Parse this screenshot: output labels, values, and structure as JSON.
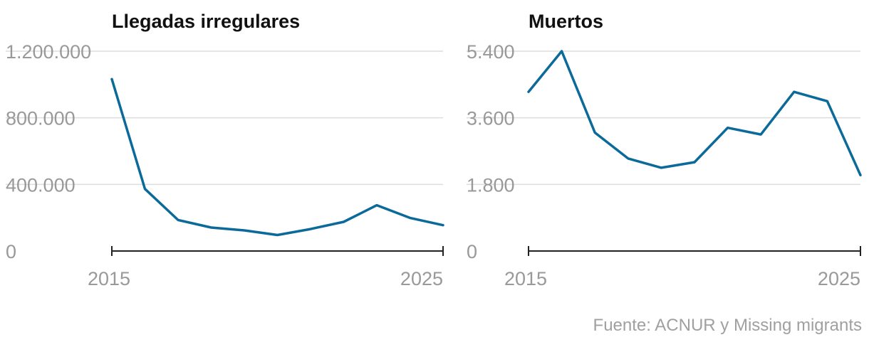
{
  "colors": {
    "line": "#0b6a99",
    "grid": "#dddddd",
    "axis": "#222222",
    "tick_text": "#999999",
    "title": "#111111"
  },
  "chart_data": [
    {
      "type": "line",
      "title": "Llegadas irregulares",
      "x": [
        2015,
        2016,
        2017,
        2018,
        2019,
        2020,
        2021,
        2022,
        2023,
        2024,
        2025
      ],
      "x_tick_labels": [
        "2015",
        "2025"
      ],
      "y_tick_values": [
        0,
        400000,
        800000,
        1200000
      ],
      "y_tick_labels": [
        "0",
        "400.000",
        "800.000",
        "1.200.000"
      ],
      "ylim": [
        0,
        1200000
      ],
      "grid": true,
      "series": [
        {
          "values": [
            1032000,
            373000,
            186000,
            141000,
            124000,
            96000,
            132000,
            175000,
            275000,
            199000,
            155000
          ]
        }
      ]
    },
    {
      "type": "line",
      "title": "Muertos",
      "x": [
        2015,
        2016,
        2017,
        2018,
        2019,
        2020,
        2021,
        2022,
        2023,
        2024,
        2025
      ],
      "x_tick_labels": [
        "2015",
        "2025"
      ],
      "y_tick_values": [
        0,
        1800,
        3600,
        5400
      ],
      "y_tick_labels": [
        "0",
        "1.800",
        "3.600",
        "5.400"
      ],
      "ylim": [
        0,
        5400
      ],
      "grid": true,
      "series": [
        {
          "values": [
            4300,
            5400,
            3200,
            2500,
            2250,
            2400,
            3330,
            3150,
            4300,
            4050,
            2050
          ]
        }
      ]
    }
  ],
  "source": "Fuente: ACNUR y Missing migrants"
}
